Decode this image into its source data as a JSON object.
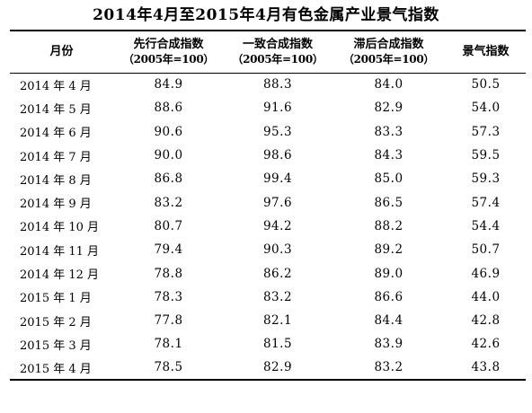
{
  "title": "2014年4月至2015年4月有色金属产业景气指数",
  "table": {
    "headers": [
      {
        "label": "月份",
        "sub": ""
      },
      {
        "label": "先行合成指数",
        "sub": "（2005年=100）"
      },
      {
        "label": "一致合成指数",
        "sub": "（2005年=100）"
      },
      {
        "label": "滞后合成指数",
        "sub": "（2005年=100）"
      },
      {
        "label": "景气指数",
        "sub": ""
      }
    ],
    "rows": [
      [
        "2014 年 4 月",
        "84.9",
        "88.3",
        "84.0",
        "50.5"
      ],
      [
        "2014 年 5 月",
        "88.6",
        "91.6",
        "82.9",
        "54.0"
      ],
      [
        "2014 年 6 月",
        "90.6",
        "95.3",
        "83.3",
        "57.3"
      ],
      [
        "2014 年 7 月",
        "90.0",
        "98.6",
        "84.3",
        "59.5"
      ],
      [
        "2014 年 8 月",
        "86.8",
        "99.4",
        "85.0",
        "59.3"
      ],
      [
        "2014 年 9 月",
        "83.2",
        "97.6",
        "86.5",
        "57.4"
      ],
      [
        "2014 年 10 月",
        "80.7",
        "94.2",
        "88.2",
        "54.4"
      ],
      [
        "2014 年 11 月",
        "79.4",
        "90.3",
        "89.2",
        "50.7"
      ],
      [
        "2014 年 12 月",
        "78.8",
        "86.2",
        "89.0",
        "46.9"
      ],
      [
        "2015 年 1 月",
        "78.3",
        "83.2",
        "86.6",
        "44.0"
      ],
      [
        "2015 年 2 月",
        "77.8",
        "82.1",
        "84.4",
        "42.8"
      ],
      [
        "2015 年 3 月",
        "78.1",
        "81.5",
        "83.9",
        "42.6"
      ],
      [
        "2015 年 4 月",
        "78.5",
        "82.9",
        "83.2",
        "43.8"
      ]
    ]
  }
}
